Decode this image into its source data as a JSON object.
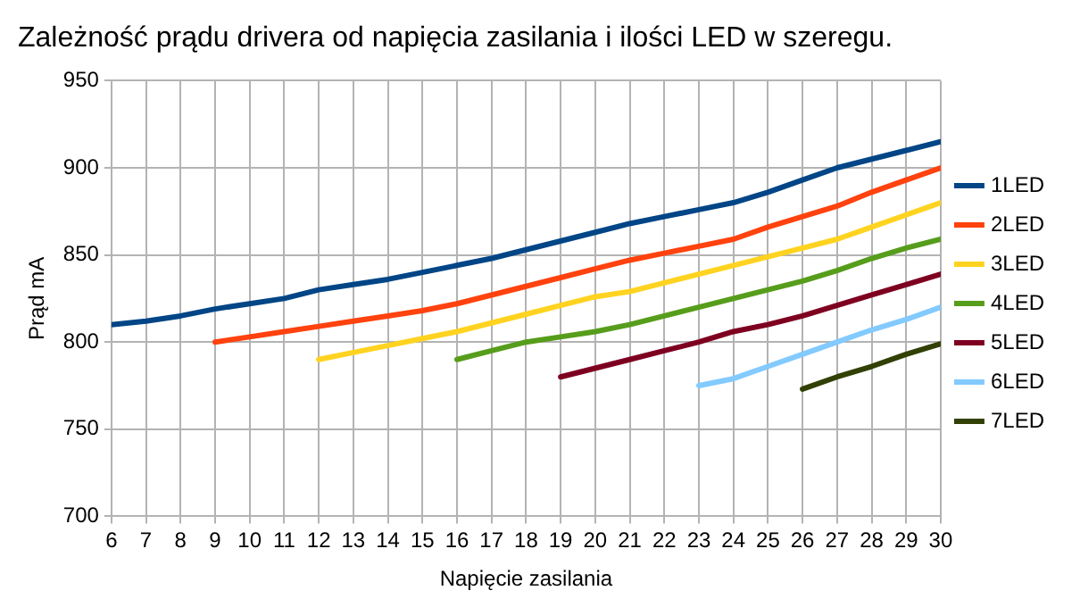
{
  "chart_data": {
    "type": "line",
    "title": "Zależność prądu drivera od napięcia zasilania i ilości LED w szeregu.",
    "xlabel": "Napięcie zasilania",
    "ylabel": "Prąd mA",
    "x": [
      6,
      7,
      8,
      9,
      10,
      11,
      12,
      13,
      14,
      15,
      16,
      17,
      18,
      19,
      20,
      21,
      22,
      23,
      24,
      25,
      26,
      27,
      28,
      29,
      30
    ],
    "xlim": [
      6,
      30
    ],
    "xticks": [
      6,
      7,
      8,
      9,
      10,
      11,
      12,
      13,
      14,
      15,
      16,
      17,
      18,
      19,
      20,
      21,
      22,
      23,
      24,
      25,
      26,
      27,
      28,
      29,
      30
    ],
    "ylim": [
      700,
      950
    ],
    "yticks": [
      700,
      750,
      800,
      850,
      900,
      950
    ],
    "grid": true,
    "legend": "right",
    "marker": "none",
    "series": [
      {
        "name": "1LED",
        "color": "#004586",
        "values": [
          810,
          812,
          815,
          819,
          822,
          825,
          830,
          833,
          836,
          840,
          844,
          848,
          853,
          858,
          863,
          868,
          872,
          876,
          880,
          886,
          893,
          900,
          905,
          910,
          915
        ]
      },
      {
        "name": "2LED",
        "color": "#ff420e",
        "values": [
          null,
          null,
          null,
          800,
          803,
          806,
          809,
          812,
          815,
          818,
          822,
          827,
          832,
          837,
          842,
          847,
          851,
          855,
          859,
          866,
          872,
          878,
          886,
          893,
          900
        ]
      },
      {
        "name": "3LED",
        "color": "#ffd320",
        "values": [
          null,
          null,
          null,
          null,
          null,
          null,
          790,
          794,
          798,
          802,
          806,
          811,
          816,
          821,
          826,
          829,
          834,
          839,
          844,
          849,
          854,
          859,
          866,
          873,
          880
        ]
      },
      {
        "name": "4LED",
        "color": "#579d1c",
        "values": [
          null,
          null,
          null,
          null,
          null,
          null,
          null,
          null,
          null,
          null,
          790,
          795,
          800,
          803,
          806,
          810,
          815,
          820,
          825,
          830,
          835,
          841,
          848,
          854,
          859
        ]
      },
      {
        "name": "5LED",
        "color": "#7e0021",
        "values": [
          null,
          null,
          null,
          null,
          null,
          null,
          null,
          null,
          null,
          null,
          null,
          null,
          null,
          780,
          785,
          790,
          795,
          800,
          806,
          810,
          815,
          821,
          827,
          833,
          839
        ]
      },
      {
        "name": "6LED",
        "color": "#83caff",
        "values": [
          null,
          null,
          null,
          null,
          null,
          null,
          null,
          null,
          null,
          null,
          null,
          null,
          null,
          null,
          null,
          null,
          null,
          775,
          779,
          786,
          793,
          800,
          807,
          813,
          820
        ]
      },
      {
        "name": "7LED",
        "color": "#314004",
        "values": [
          null,
          null,
          null,
          null,
          null,
          null,
          null,
          null,
          null,
          null,
          null,
          null,
          null,
          null,
          null,
          null,
          null,
          null,
          null,
          null,
          773,
          780,
          786,
          793,
          799
        ]
      }
    ]
  }
}
